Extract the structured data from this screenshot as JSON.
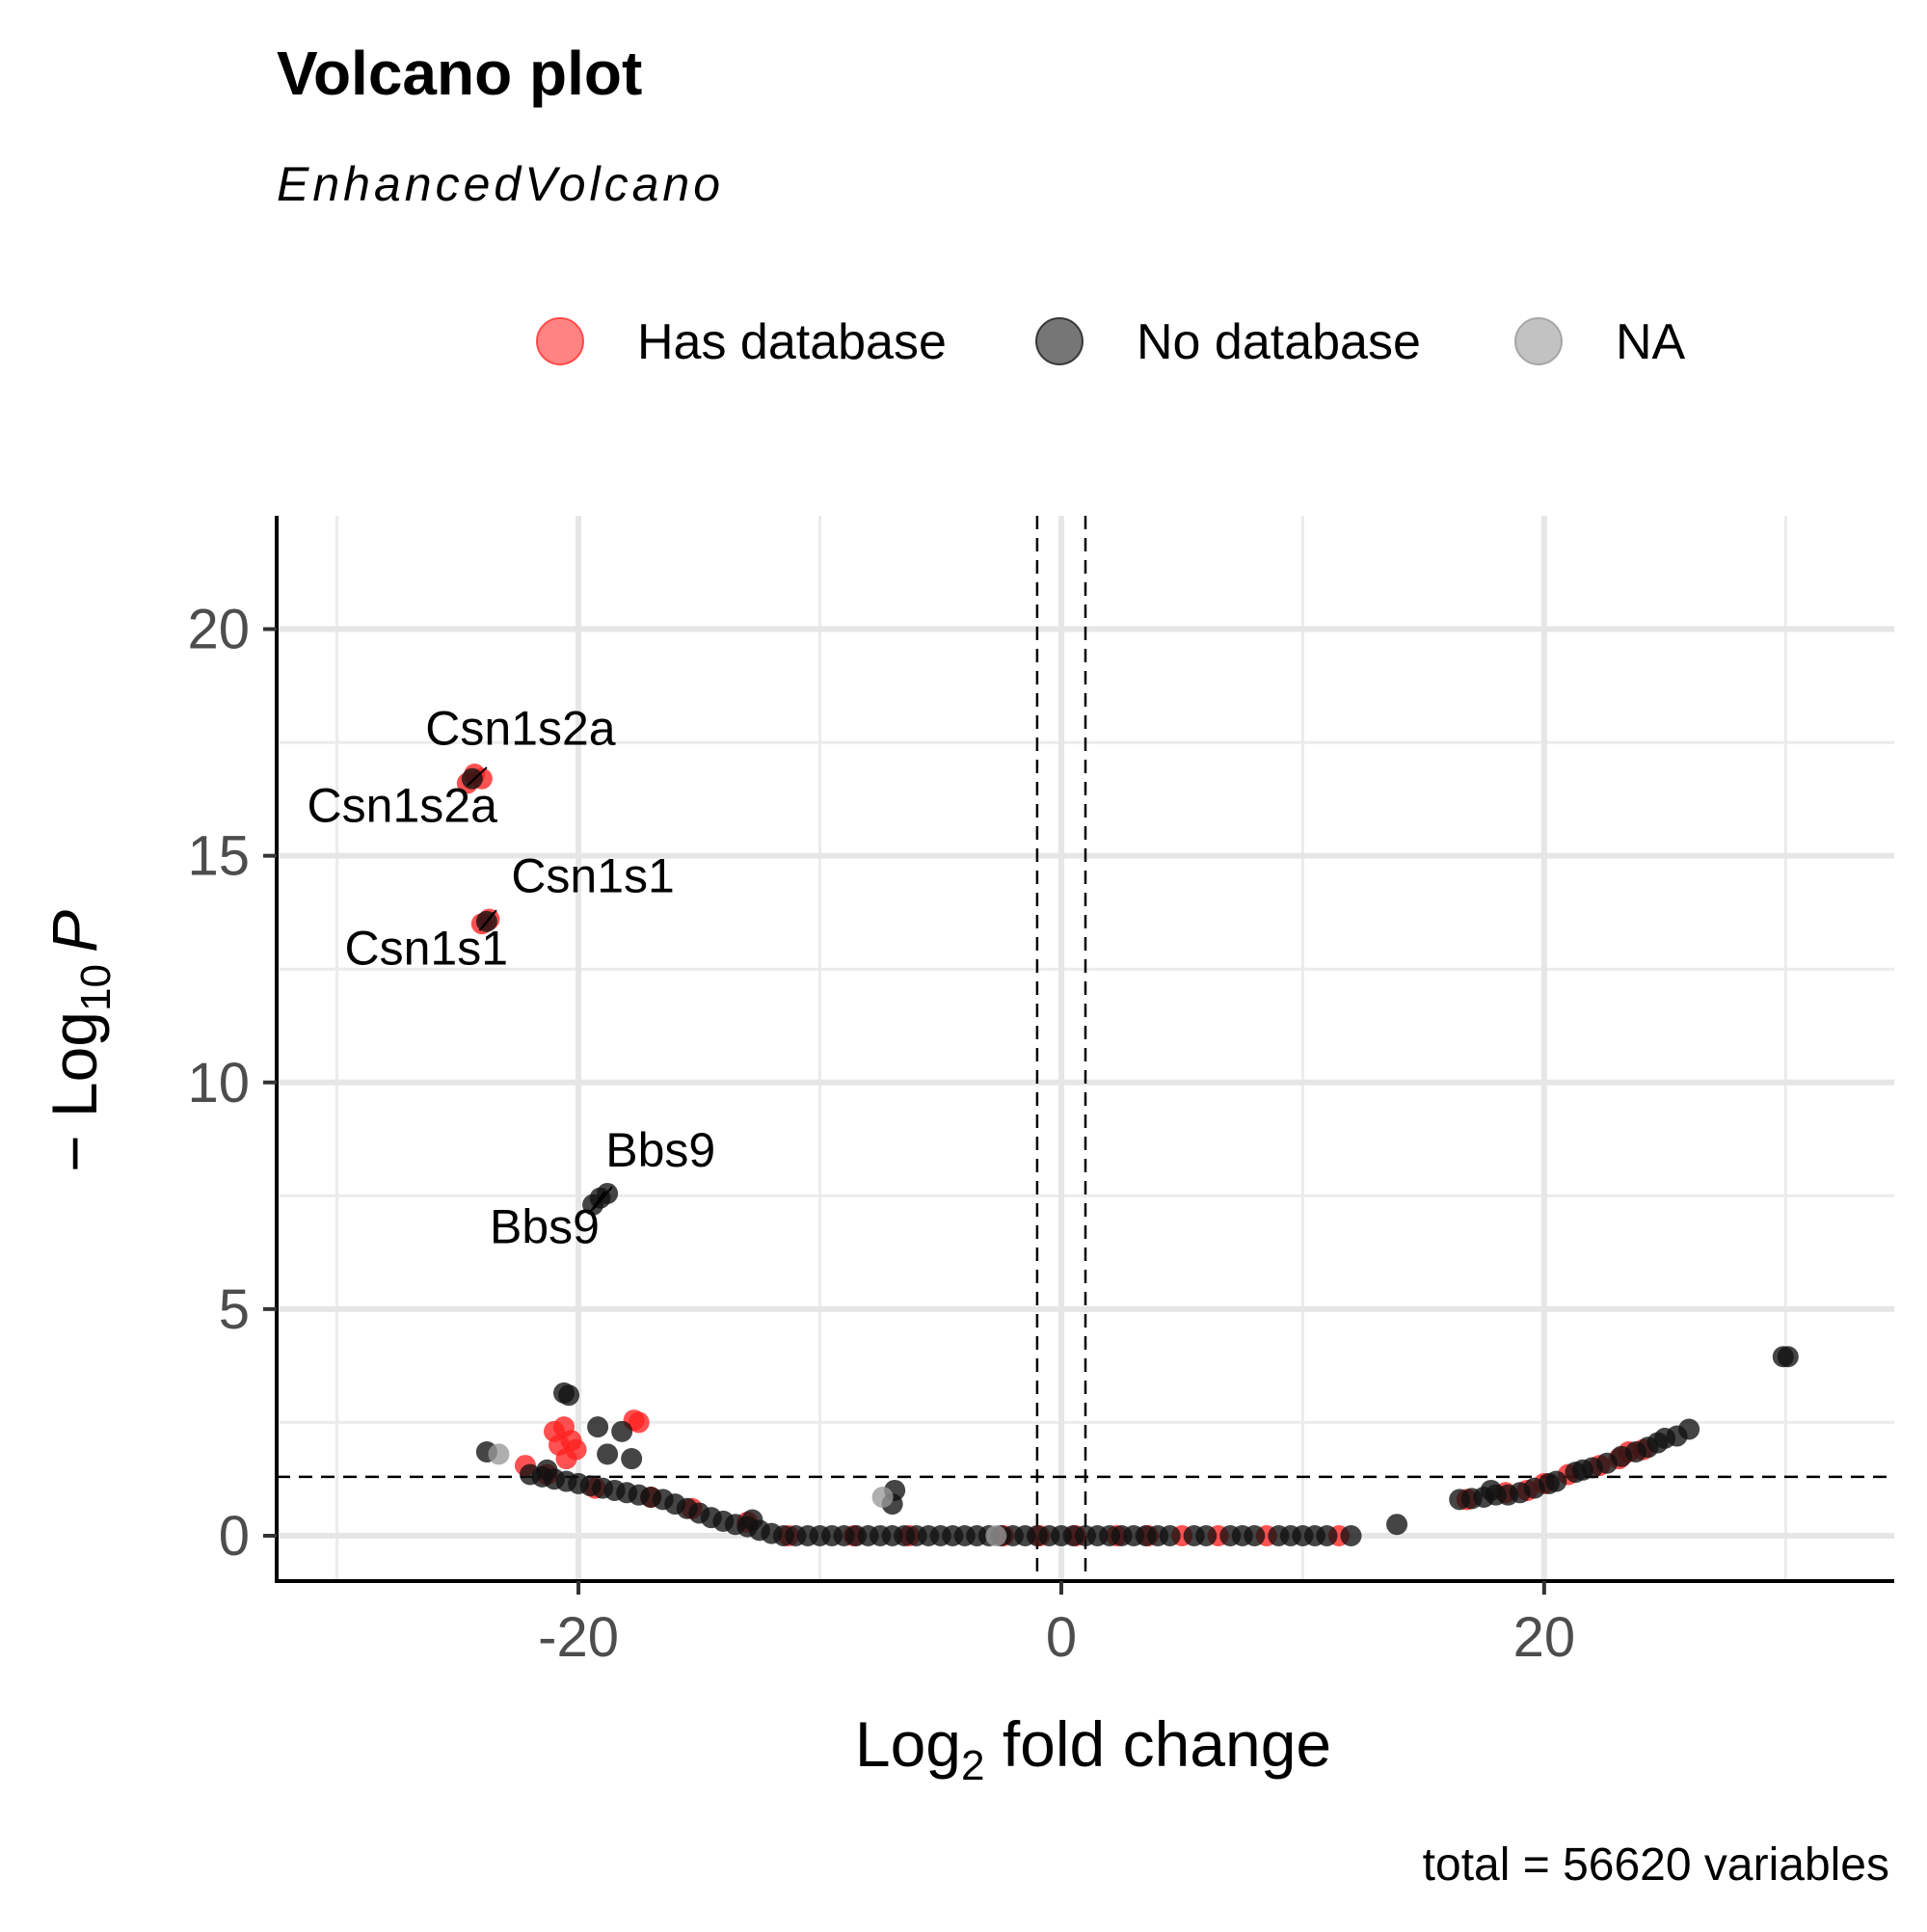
{
  "chart_data": {
    "type": "scatter",
    "title": "Volcano plot",
    "subtitle": "EnhancedVolcano",
    "caption": "total = 56620 variables",
    "xlabel": {
      "base": "Log",
      "sub": "2",
      "rest": " fold change"
    },
    "ylabel": {
      "prefix": "− Log",
      "sub": "10",
      "var": "P"
    },
    "xlim": [
      -32.5,
      34.5
    ],
    "ylim": [
      -1.0,
      22.5
    ],
    "x_ticks": [
      -20,
      0,
      20
    ],
    "x_tick_labels": [
      "-20",
      "0",
      "20"
    ],
    "y_ticks": [
      0,
      5,
      10,
      15,
      20
    ],
    "y_tick_labels": [
      "0",
      "5",
      "10",
      "15",
      "20"
    ],
    "x_minor_grid": [
      -30,
      -10,
      10,
      30
    ],
    "y_minor_grid": [
      2.5,
      7.5,
      12.5,
      17.5
    ],
    "grid": true,
    "cutoff_lines": {
      "x": [
        -1,
        1
      ],
      "y": 1.3
    },
    "legend": {
      "position": "top",
      "entries": [
        {
          "key": "has",
          "label": "Has database",
          "color": "#ff3030"
        },
        {
          "key": "no",
          "label": "No database",
          "color": "#1a1a1a"
        },
        {
          "key": "na",
          "label": "NA",
          "color": "#999999"
        }
      ]
    },
    "series": [
      {
        "key": "has",
        "name": "Has database",
        "color": "#ff2020",
        "points": [
          [
            -24.6,
            16.6
          ],
          [
            -24.3,
            16.8
          ],
          [
            -24.0,
            16.7
          ],
          [
            -24.0,
            13.5
          ],
          [
            -23.7,
            13.6
          ],
          [
            -21.0,
            2.3
          ],
          [
            -20.6,
            2.4
          ],
          [
            -20.3,
            2.1
          ],
          [
            -20.8,
            2.0
          ],
          [
            -20.1,
            1.9
          ],
          [
            -20.5,
            1.7
          ],
          [
            -22.2,
            1.55
          ],
          [
            -21.3,
            1.35
          ],
          [
            -17.7,
            2.55
          ],
          [
            -17.5,
            2.5
          ],
          [
            -19.3,
            1.05
          ],
          [
            -17.0,
            0.85
          ],
          [
            -15.3,
            0.6
          ],
          [
            -13.0,
            0.3
          ],
          [
            -11.3,
            0.0
          ],
          [
            -8.6,
            0.0
          ],
          [
            -6.3,
            0.0
          ],
          [
            -2.4,
            0.0
          ],
          [
            -0.9,
            0.0
          ],
          [
            0.6,
            0.0
          ],
          [
            2.3,
            0.0
          ],
          [
            3.6,
            0.0
          ],
          [
            5.0,
            0.0
          ],
          [
            6.5,
            0.0
          ],
          [
            8.5,
            0.0
          ],
          [
            11.5,
            0.0
          ],
          [
            16.8,
            0.8
          ],
          [
            18.4,
            0.95
          ],
          [
            19.3,
            1.0
          ],
          [
            20.0,
            1.15
          ],
          [
            21.0,
            1.35
          ],
          [
            22.3,
            1.55
          ],
          [
            23.1,
            1.7
          ],
          [
            23.5,
            1.85
          ],
          [
            24.1,
            1.9
          ]
        ]
      },
      {
        "key": "no",
        "name": "No database",
        "color": "#111111",
        "points": [
          [
            -19.4,
            7.3
          ],
          [
            -19.1,
            7.45
          ],
          [
            -18.8,
            7.55
          ],
          [
            -24.4,
            16.7
          ],
          [
            -23.8,
            13.55
          ],
          [
            -23.8,
            1.85
          ],
          [
            -21.3,
            1.45
          ],
          [
            -20.6,
            3.15
          ],
          [
            -20.4,
            3.1
          ],
          [
            -19.2,
            2.4
          ],
          [
            -18.8,
            1.8
          ],
          [
            -18.2,
            2.3
          ],
          [
            -17.8,
            1.7
          ],
          [
            -22.0,
            1.35
          ],
          [
            -21.5,
            1.3
          ],
          [
            -21.0,
            1.25
          ],
          [
            -20.5,
            1.2
          ],
          [
            -20.0,
            1.15
          ],
          [
            -19.5,
            1.1
          ],
          [
            -19.0,
            1.05
          ],
          [
            -18.5,
            1.0
          ],
          [
            -18.0,
            0.95
          ],
          [
            -17.5,
            0.9
          ],
          [
            -17.0,
            0.85
          ],
          [
            -16.5,
            0.8
          ],
          [
            -16.0,
            0.7
          ],
          [
            -15.5,
            0.6
          ],
          [
            -15.0,
            0.5
          ],
          [
            -14.5,
            0.4
          ],
          [
            -14.0,
            0.32
          ],
          [
            -13.5,
            0.25
          ],
          [
            -13.0,
            0.2
          ],
          [
            -12.8,
            0.35
          ],
          [
            -12.5,
            0.12
          ],
          [
            -12.0,
            0.05
          ],
          [
            -11.5,
            0.0
          ],
          [
            -11.0,
            0.0
          ],
          [
            -10.5,
            0.0
          ],
          [
            -10.0,
            0.0
          ],
          [
            -9.5,
            0.0
          ],
          [
            -9.0,
            0.0
          ],
          [
            -8.5,
            0.0
          ],
          [
            -8.0,
            0.0
          ],
          [
            -7.5,
            0.0
          ],
          [
            -7.0,
            0.0
          ],
          [
            -6.5,
            0.0
          ],
          [
            -6.0,
            0.0
          ],
          [
            -5.5,
            0.0
          ],
          [
            -5.0,
            0.0
          ],
          [
            -4.5,
            0.0
          ],
          [
            -4.0,
            0.0
          ],
          [
            -3.5,
            0.0
          ],
          [
            -3.0,
            0.0
          ],
          [
            -2.5,
            0.0
          ],
          [
            -2.0,
            0.0
          ],
          [
            -1.5,
            0.0
          ],
          [
            -1.0,
            0.0
          ],
          [
            -0.5,
            0.0
          ],
          [
            0.0,
            0.0
          ],
          [
            0.5,
            0.0
          ],
          [
            1.0,
            0.0
          ],
          [
            1.5,
            0.0
          ],
          [
            2.0,
            0.0
          ],
          [
            2.5,
            0.0
          ],
          [
            3.0,
            0.0
          ],
          [
            3.5,
            0.0
          ],
          [
            4.0,
            0.0
          ],
          [
            4.5,
            0.0
          ],
          [
            5.5,
            0.0
          ],
          [
            6.0,
            0.0
          ],
          [
            7.0,
            0.0
          ],
          [
            7.5,
            0.0
          ],
          [
            8.0,
            0.0
          ],
          [
            9.0,
            0.0
          ],
          [
            9.5,
            0.0
          ],
          [
            10.0,
            0.0
          ],
          [
            10.5,
            0.0
          ],
          [
            11.0,
            0.0
          ],
          [
            12.0,
            0.0
          ],
          [
            -6.9,
            1.0
          ],
          [
            -7.0,
            0.7
          ],
          [
            13.9,
            0.25
          ],
          [
            16.5,
            0.8
          ],
          [
            17.0,
            0.82
          ],
          [
            17.5,
            0.85
          ],
          [
            17.8,
            1.0
          ],
          [
            18.0,
            0.9
          ],
          [
            18.5,
            0.9
          ],
          [
            19.0,
            0.95
          ],
          [
            19.6,
            1.05
          ],
          [
            20.2,
            1.15
          ],
          [
            20.5,
            1.2
          ],
          [
            21.3,
            1.4
          ],
          [
            21.6,
            1.45
          ],
          [
            22.0,
            1.5
          ],
          [
            22.6,
            1.6
          ],
          [
            23.2,
            1.75
          ],
          [
            23.8,
            1.85
          ],
          [
            24.3,
            1.95
          ],
          [
            24.7,
            2.05
          ],
          [
            25.0,
            2.15
          ],
          [
            25.5,
            2.2
          ],
          [
            26.0,
            2.35
          ],
          [
            29.9,
            3.95
          ],
          [
            30.1,
            3.95
          ]
        ]
      },
      {
        "key": "na",
        "name": "NA",
        "color": "#999999",
        "points": [
          [
            -23.3,
            1.8
          ],
          [
            -7.4,
            0.85
          ],
          [
            -2.7,
            0.0
          ]
        ]
      }
    ],
    "annotations": [
      {
        "text": "Csn1s2a",
        "x": -22.4,
        "y": 17.45,
        "anchor": "middle",
        "lx1": -23.8,
        "ly1": 16.95,
        "lx2": -24.6,
        "ly2": 16.55
      },
      {
        "text": "Csn1s2a",
        "x": -27.3,
        "y": 15.75,
        "anchor": "middle",
        "lx1": -24.6,
        "ly1": 16.55,
        "lx2": -24.0,
        "ly2": 16.85
      },
      {
        "text": "Csn1s1",
        "x": -19.4,
        "y": 14.2,
        "anchor": "middle",
        "lx1": -23.4,
        "ly1": 13.8,
        "lx2": -24.0,
        "ly2": 13.4
      },
      {
        "text": "Csn1s1",
        "x": -26.3,
        "y": 12.6,
        "anchor": "middle",
        "lx1": -24.1,
        "ly1": 13.35,
        "lx2": -23.5,
        "ly2": 13.75
      },
      {
        "text": "Bbs9",
        "x": -16.6,
        "y": 8.15,
        "anchor": "middle",
        "lx1": -18.6,
        "ly1": 7.7,
        "lx2": -19.4,
        "ly2": 7.2
      },
      {
        "text": "Bbs9",
        "x": -21.4,
        "y": 6.45,
        "anchor": "middle",
        "lx1": -19.5,
        "ly1": 7.15,
        "lx2": -18.9,
        "ly2": 7.6
      }
    ]
  }
}
